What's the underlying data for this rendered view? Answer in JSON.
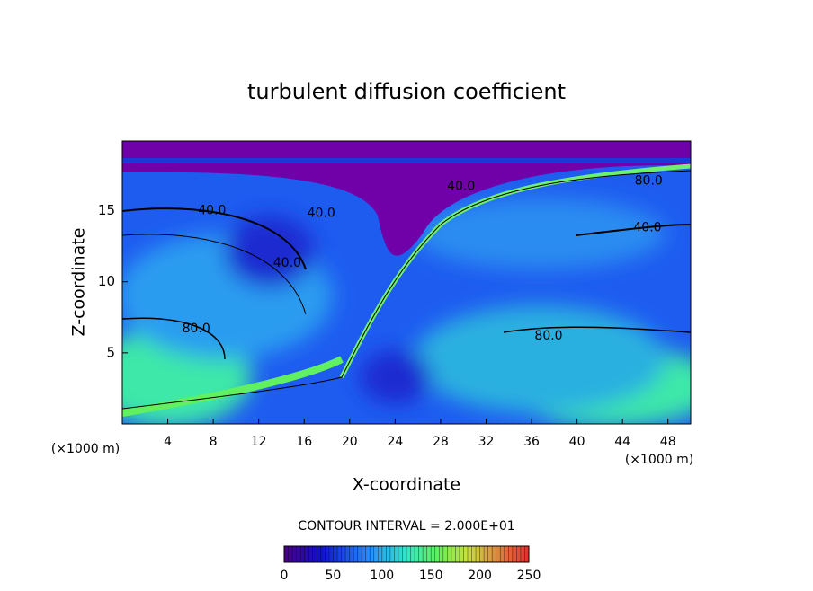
{
  "chart_data": {
    "type": "contour",
    "title": "turbulent diffusion coefficient",
    "x_label": "X-coordinate",
    "y_label": "Z-coordinate",
    "y_unit": "(×1000 m)",
    "x_unit": "(×1000 m)",
    "xlim": [
      0,
      50
    ],
    "xticks": [
      4,
      8,
      12,
      16,
      20,
      24,
      28,
      32,
      36,
      40,
      44,
      48
    ],
    "ylim": [
      0,
      19.9
    ],
    "yticks": [
      5,
      10,
      15
    ],
    "contour_labels": [
      {
        "x": 7.9,
        "z": 15,
        "value": 40,
        "label": "40.0"
      },
      {
        "x": 17.5,
        "z": 14.8,
        "value": 40,
        "label": "40.0"
      },
      {
        "x": 14.5,
        "z": 11.3,
        "value": 40,
        "label": "40.0"
      },
      {
        "x": 46.2,
        "z": 13.8,
        "value": 40,
        "label": "40.0"
      },
      {
        "x": 29.8,
        "z": 16.7,
        "value": 40,
        "label": "40.0"
      },
      {
        "x": 6.5,
        "z": 6.7,
        "value": 80,
        "label": "80.0"
      },
      {
        "x": 37.5,
        "z": 6.2,
        "value": 80,
        "label": "80.0"
      },
      {
        "x": 46.3,
        "z": 17.1,
        "value": 80,
        "label": "80.0"
      }
    ],
    "contour_interval": "CONTOUR INTERVAL = 2.000E+01",
    "colorbar": {
      "lim": [
        0,
        250
      ],
      "ticks": [
        0,
        50,
        100,
        150,
        200,
        250
      ]
    }
  }
}
